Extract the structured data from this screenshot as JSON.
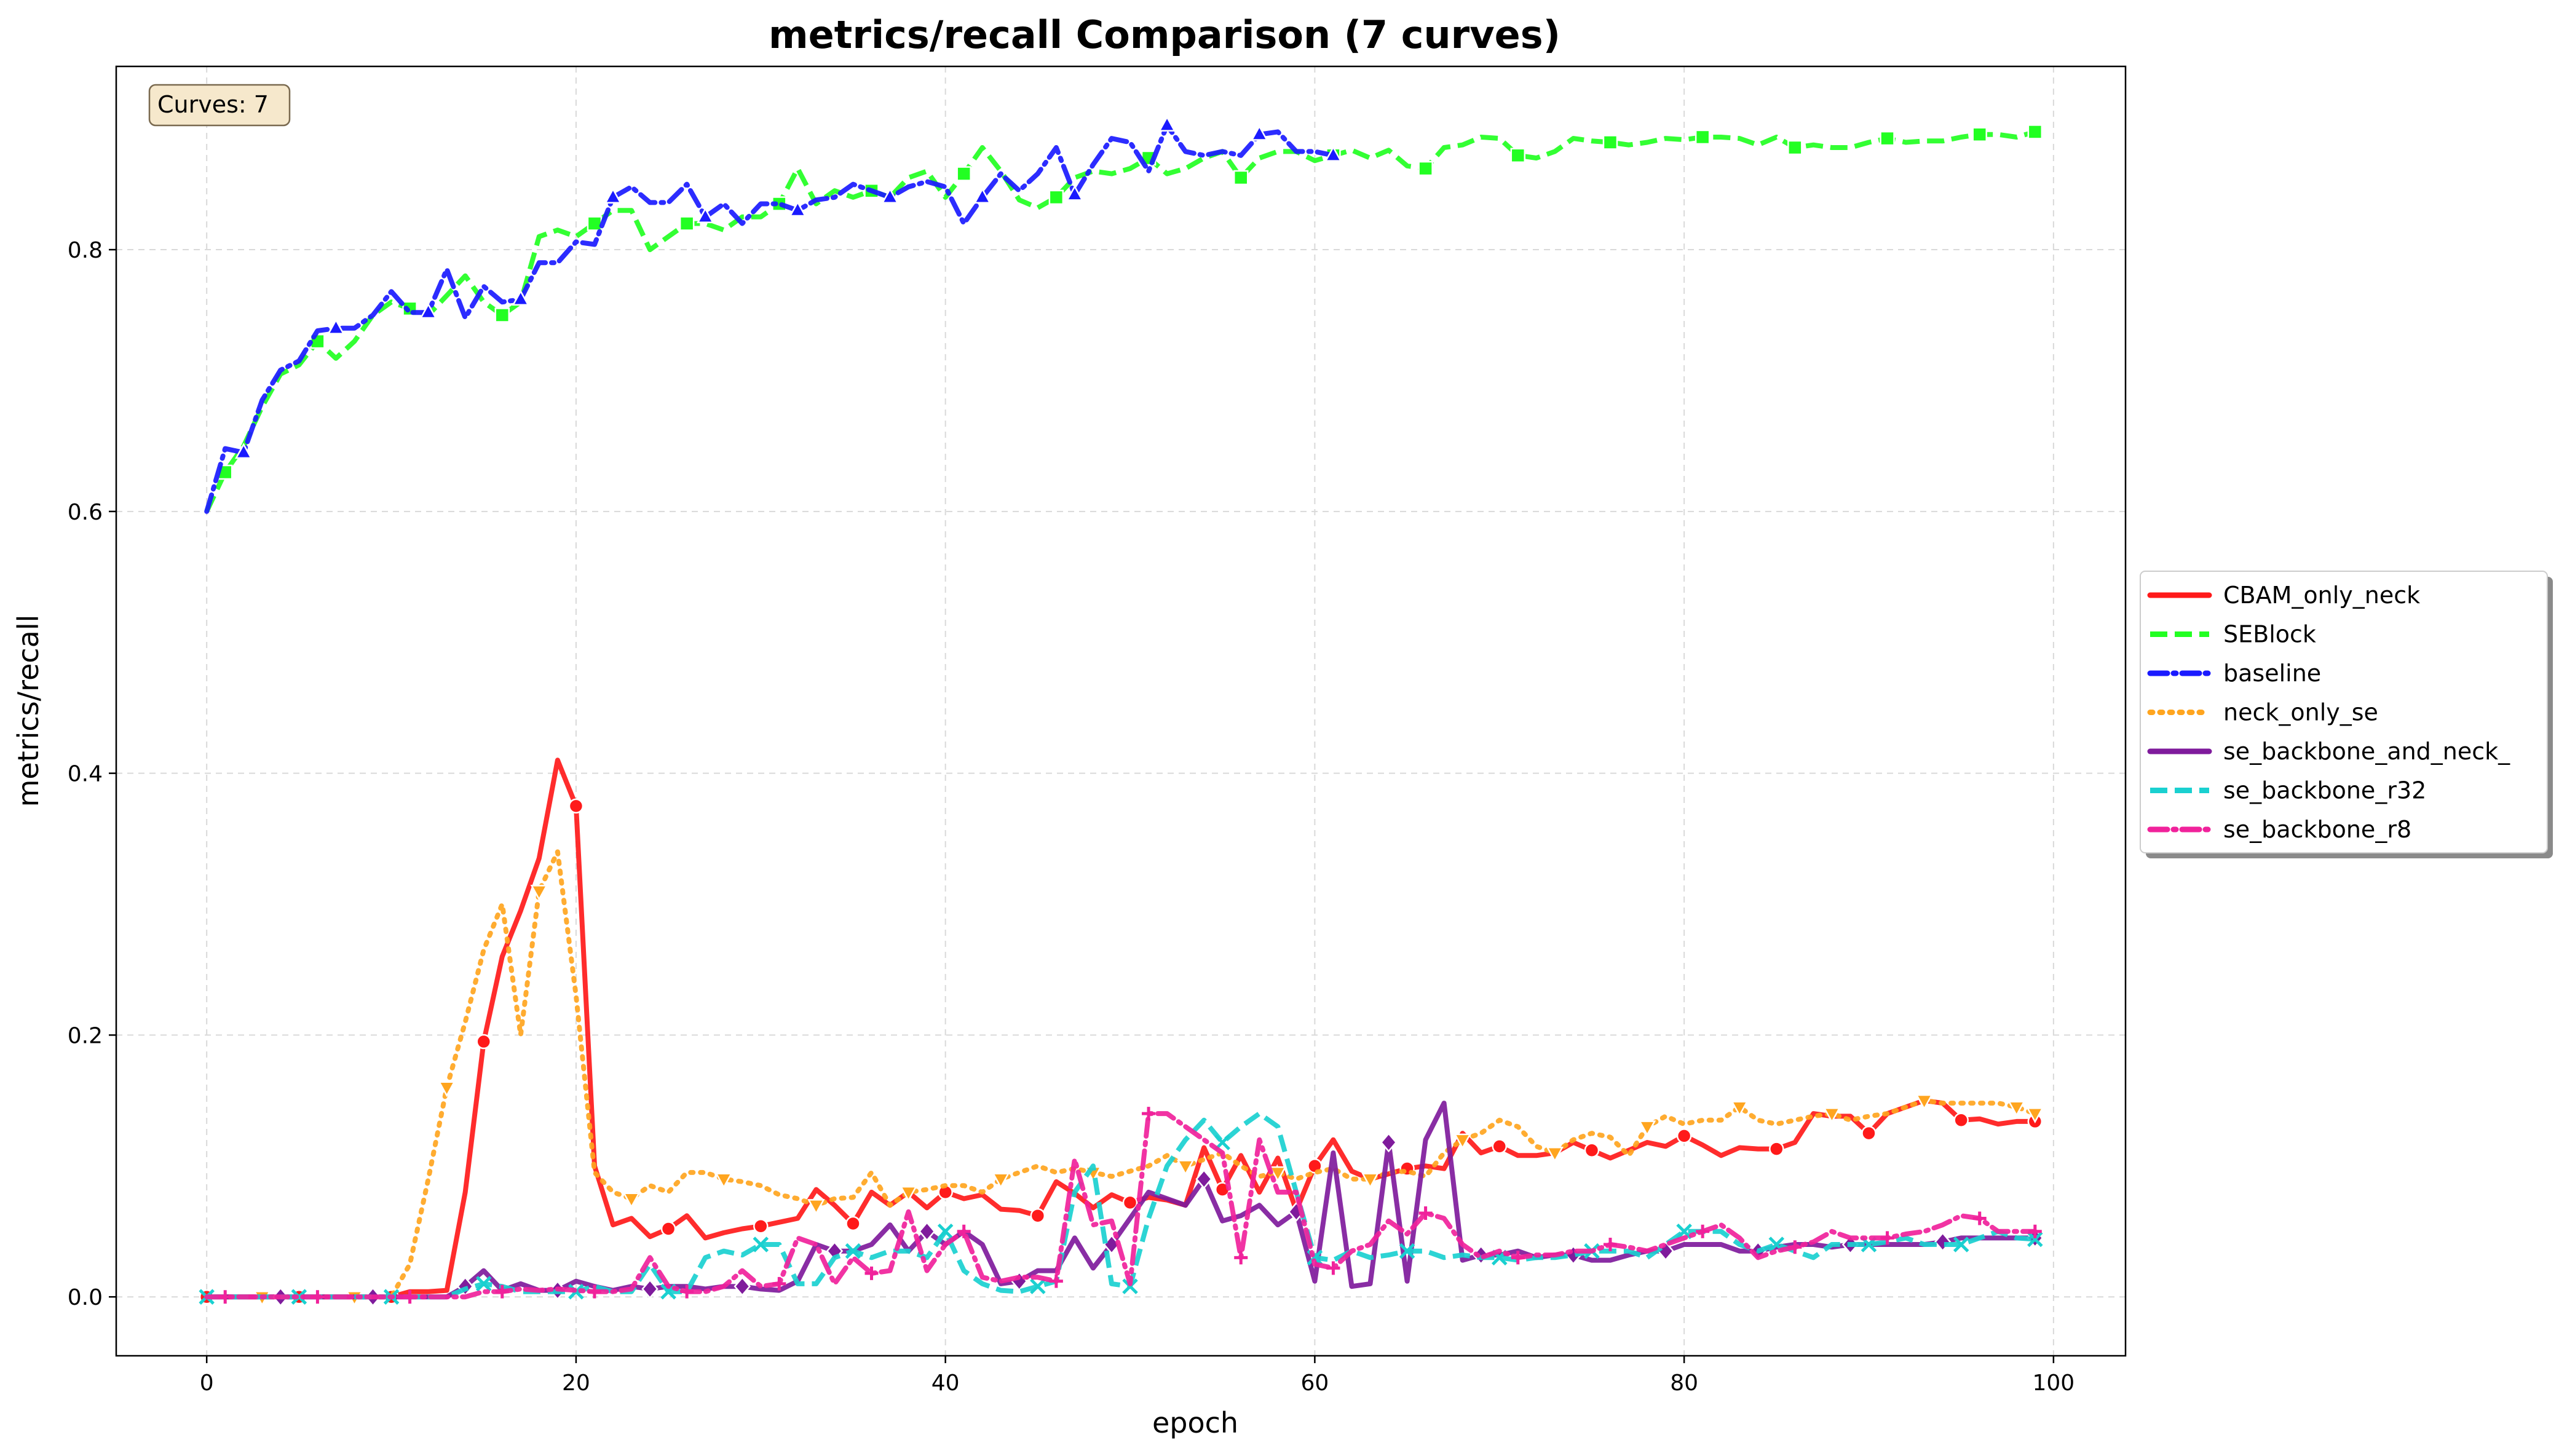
{
  "chart_data": {
    "type": "line",
    "title": "metrics/recall Comparison (7 curves)",
    "xlabel": "epoch",
    "ylabel": "metrics/recall",
    "xlim": [
      -4.9,
      103.9
    ],
    "ylim": [
      -0.045,
      0.94
    ],
    "xticks": [
      0,
      20,
      40,
      60,
      80,
      100
    ],
    "yticks": [
      0.0,
      0.2,
      0.4,
      0.6,
      0.8
    ],
    "xtick_labels": [
      "0",
      "20",
      "40",
      "60",
      "80",
      "100"
    ],
    "ytick_labels": [
      "0.0",
      "0.2",
      "0.4",
      "0.6",
      "0.8"
    ],
    "grid": true,
    "legend_position": "right-outside",
    "annotation": "Curves: 7",
    "series": [
      {
        "name": "CBAM_only_neck",
        "color": "#ff1a1a",
        "dash": "solid",
        "marker": "circle",
        "x_start": 0,
        "values": [
          0,
          0,
          0,
          0,
          0,
          0,
          0,
          0,
          0,
          0,
          0,
          0.004,
          0.004,
          0.005,
          0.08,
          0.195,
          0.26,
          0.295,
          0.335,
          0.41,
          0.375,
          0.1,
          0.055,
          0.06,
          0.046,
          0.052,
          0.062,
          0.045,
          0.049,
          0.052,
          0.054,
          0.057,
          0.06,
          0.082,
          0.07,
          0.056,
          0.08,
          0.07,
          0.08,
          0.068,
          0.08,
          0.075,
          0.078,
          0.067,
          0.066,
          0.062,
          0.088,
          0.079,
          0.068,
          0.078,
          0.072,
          0.076,
          0.074,
          0.07,
          0.114,
          0.082,
          0.108,
          0.08,
          0.106,
          0.066,
          0.1,
          0.12,
          0.096,
          0.09,
          0.094,
          0.098,
          0.1,
          0.098,
          0.125,
          0.11,
          0.115,
          0.108,
          0.108,
          0.11,
          0.118,
          0.112,
          0.106,
          0.112,
          0.118,
          0.115,
          0.123,
          0.116,
          0.108,
          0.114,
          0.113,
          0.113,
          0.118,
          0.14,
          0.138,
          0.138,
          0.125,
          0.14,
          0.145,
          0.15,
          0.148,
          0.135,
          0.136,
          0.132,
          0.134,
          0.134
        ]
      },
      {
        "name": "SEBlock",
        "color": "#22ff22",
        "dash": "dashed",
        "marker": "square",
        "x_start": 0,
        "values": [
          0.6,
          0.63,
          0.65,
          0.68,
          0.705,
          0.712,
          0.73,
          0.717,
          0.73,
          0.75,
          0.76,
          0.755,
          0.75,
          0.765,
          0.78,
          0.76,
          0.75,
          0.76,
          0.81,
          0.815,
          0.81,
          0.82,
          0.83,
          0.83,
          0.8,
          0.81,
          0.82,
          0.82,
          0.815,
          0.825,
          0.825,
          0.835,
          0.862,
          0.835,
          0.845,
          0.84,
          0.845,
          0.84,
          0.855,
          0.86,
          0.84,
          0.858,
          0.878,
          0.86,
          0.838,
          0.832,
          0.84,
          0.855,
          0.86,
          0.858,
          0.862,
          0.87,
          0.858,
          0.862,
          0.87,
          0.875,
          0.855,
          0.87,
          0.875,
          0.875,
          0.868,
          0.872,
          0.876,
          0.87,
          0.876,
          0.864,
          0.862,
          0.878,
          0.88,
          0.886,
          0.885,
          0.872,
          0.87,
          0.875,
          0.885,
          0.883,
          0.882,
          0.88,
          0.882,
          0.885,
          0.884,
          0.886,
          0.886,
          0.885,
          0.88,
          0.886,
          0.878,
          0.88,
          0.878,
          0.878,
          0.882,
          0.885,
          0.882,
          0.883,
          0.883,
          0.886,
          0.888,
          0.888,
          0.886,
          0.89
        ]
      },
      {
        "name": "baseline",
        "color": "#1a1aff",
        "dash": "dashdot",
        "marker": "triangle",
        "x_start": 0,
        "values": [
          0.6,
          0.648,
          0.645,
          0.685,
          0.708,
          0.715,
          0.738,
          0.74,
          0.74,
          0.75,
          0.768,
          0.752,
          0.752,
          0.785,
          0.748,
          0.772,
          0.76,
          0.762,
          0.79,
          0.79,
          0.806,
          0.804,
          0.84,
          0.848,
          0.836,
          0.836,
          0.85,
          0.825,
          0.835,
          0.82,
          0.835,
          0.835,
          0.83,
          0.838,
          0.84,
          0.85,
          0.845,
          0.84,
          0.848,
          0.852,
          0.848,
          0.82,
          0.84,
          0.858,
          0.845,
          0.858,
          0.878,
          0.842,
          0.865,
          0.885,
          0.882,
          0.86,
          0.895,
          0.875,
          0.872,
          0.875,
          0.872,
          0.888,
          0.89,
          0.875,
          0.875,
          0.872
        ]
      },
      {
        "name": "neck_only_se",
        "color": "#ffa51f",
        "dash": "dotted",
        "marker": "triangle-down",
        "x_start": 0,
        "values": [
          0,
          0,
          0,
          0,
          0,
          0,
          0,
          0,
          0,
          0,
          0,
          0.025,
          0.09,
          0.16,
          0.21,
          0.265,
          0.3,
          0.2,
          0.31,
          0.34,
          0.23,
          0.095,
          0.08,
          0.075,
          0.085,
          0.08,
          0.095,
          0.095,
          0.09,
          0.088,
          0.085,
          0.078,
          0.075,
          0.07,
          0.075,
          0.076,
          0.095,
          0.07,
          0.08,
          0.082,
          0.085,
          0.085,
          0.08,
          0.09,
          0.095,
          0.1,
          0.095,
          0.098,
          0.095,
          0.092,
          0.096,
          0.1,
          0.108,
          0.1,
          0.105,
          0.11,
          0.1,
          0.092,
          0.095,
          0.09,
          0.095,
          0.098,
          0.09,
          0.09,
          0.095,
          0.096,
          0.092,
          0.11,
          0.12,
          0.125,
          0.135,
          0.13,
          0.115,
          0.11,
          0.12,
          0.125,
          0.122,
          0.108,
          0.13,
          0.138,
          0.132,
          0.135,
          0.135,
          0.145,
          0.135,
          0.132,
          0.135,
          0.138,
          0.14,
          0.135,
          0.138,
          0.14,
          0.145,
          0.15,
          0.148,
          0.148,
          0.148,
          0.148,
          0.145,
          0.14
        ]
      },
      {
        "name": "se_backbone_and_neck_",
        "color": "#7f1b9c",
        "dash": "solid",
        "marker": "diamond",
        "x_start": 0,
        "values": [
          0,
          0,
          0,
          0,
          0,
          0,
          0,
          0,
          0,
          0,
          0,
          0,
          0,
          0,
          0.008,
          0.02,
          0.005,
          0.01,
          0.005,
          0.005,
          0.012,
          0.008,
          0.005,
          0.008,
          0.006,
          0.008,
          0.008,
          0.006,
          0.008,
          0.008,
          0.006,
          0.005,
          0.012,
          0.04,
          0.035,
          0.035,
          0.04,
          0.055,
          0.035,
          0.05,
          0.04,
          0.05,
          0.04,
          0.01,
          0.012,
          0.02,
          0.02,
          0.045,
          0.022,
          0.04,
          0.06,
          0.08,
          0.075,
          0.07,
          0.09,
          0.058,
          0.062,
          0.07,
          0.055,
          0.065,
          0.012,
          0.11,
          0.008,
          0.01,
          0.118,
          0.012,
          0.12,
          0.148,
          0.028,
          0.032,
          0.032,
          0.035,
          0.03,
          0.032,
          0.032,
          0.028,
          0.028,
          0.032,
          0.035,
          0.035,
          0.04,
          0.04,
          0.04,
          0.035,
          0.035,
          0.038,
          0.04,
          0.04,
          0.038,
          0.04,
          0.04,
          0.04,
          0.04,
          0.04,
          0.042,
          0.045,
          0.045,
          0.045,
          0.045,
          0.045
        ]
      },
      {
        "name": "se_backbone_r32",
        "color": "#1ad0d0",
        "dash": "dashed",
        "marker": "x",
        "x_start": 0,
        "values": [
          0,
          0,
          0,
          0,
          0,
          0,
          0,
          0,
          0,
          0,
          0,
          0,
          0,
          0,
          0.006,
          0.01,
          0.008,
          0.004,
          0.004,
          0.004,
          0.004,
          0.008,
          0.004,
          0.004,
          0.025,
          0.004,
          0.004,
          0.03,
          0.035,
          0.032,
          0.04,
          0.04,
          0.01,
          0.01,
          0.03,
          0.035,
          0.03,
          0.035,
          0.035,
          0.03,
          0.05,
          0.02,
          0.01,
          0.005,
          0.004,
          0.008,
          0.012,
          0.08,
          0.1,
          0.01,
          0.008,
          0.06,
          0.1,
          0.12,
          0.135,
          0.118,
          0.13,
          0.14,
          0.13,
          0.08,
          0.03,
          0.028,
          0.035,
          0.03,
          0.032,
          0.035,
          0.035,
          0.03,
          0.032,
          0.03,
          0.03,
          0.028,
          0.03,
          0.03,
          0.032,
          0.035,
          0.035,
          0.035,
          0.03,
          0.04,
          0.05,
          0.05,
          0.05,
          0.04,
          0.035,
          0.04,
          0.035,
          0.03,
          0.04,
          0.04,
          0.04,
          0.042,
          0.045,
          0.04,
          0.04,
          0.04,
          0.045,
          0.05,
          0.045,
          0.044
        ]
      },
      {
        "name": "se_backbone_r8",
        "color": "#f0229b",
        "dash": "dashdot",
        "marker": "plus",
        "x_start": 0,
        "values": [
          0,
          0,
          0,
          0,
          0,
          0,
          0,
          0,
          0,
          0,
          0,
          0,
          0,
          0,
          0,
          0.004,
          0.004,
          0.006,
          0.005,
          0.006,
          0.005,
          0.004,
          0.004,
          0.006,
          0.03,
          0.008,
          0.004,
          0.004,
          0.008,
          0.02,
          0.008,
          0.01,
          0.045,
          0.04,
          0.01,
          0.03,
          0.018,
          0.02,
          0.065,
          0.02,
          0.04,
          0.05,
          0.015,
          0.012,
          0.015,
          0.015,
          0.012,
          0.105,
          0.055,
          0.058,
          0.01,
          0.14,
          0.14,
          0.13,
          0.12,
          0.11,
          0.03,
          0.12,
          0.08,
          0.08,
          0.025,
          0.022,
          0.035,
          0.04,
          0.058,
          0.048,
          0.064,
          0.06,
          0.04,
          0.03,
          0.035,
          0.03,
          0.032,
          0.032,
          0.035,
          0.035,
          0.04,
          0.038,
          0.035,
          0.04,
          0.045,
          0.05,
          0.055,
          0.045,
          0.03,
          0.035,
          0.038,
          0.042,
          0.05,
          0.045,
          0.045,
          0.045,
          0.048,
          0.05,
          0.055,
          0.062,
          0.06,
          0.05,
          0.05,
          0.05
        ]
      }
    ]
  }
}
